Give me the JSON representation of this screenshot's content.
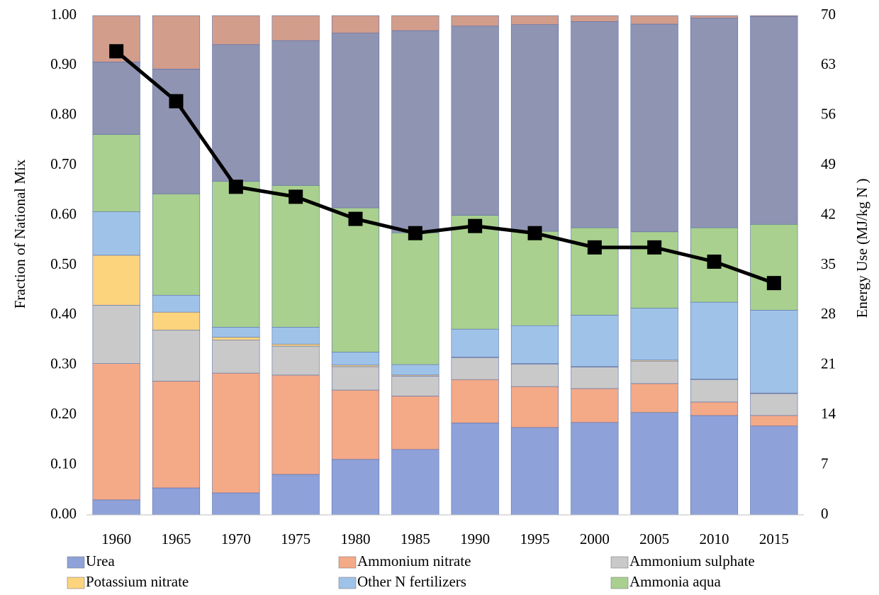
{
  "chart_data": {
    "type": "bar",
    "stacked": true,
    "ylabel": "Fraction of National Mix",
    "y2label": "Energy Use (MJ/kg N )",
    "categories": [
      "1960",
      "1965",
      "1970",
      "1975",
      "1980",
      "1985",
      "1990",
      "1995",
      "2000",
      "2005",
      "2010",
      "2015"
    ],
    "ylim": [
      0,
      1
    ],
    "yticks": [
      {
        "value": 0,
        "label": "0.00"
      },
      {
        "value": 0.1,
        "label": "0.10"
      },
      {
        "value": 0.2,
        "label": "0.20"
      },
      {
        "value": 0.3,
        "label": "0.30"
      },
      {
        "value": 0.4,
        "label": "0.40"
      },
      {
        "value": 0.5,
        "label": "0.50"
      },
      {
        "value": 0.6,
        "label": "0.60"
      },
      {
        "value": 0.7,
        "label": "0.70"
      },
      {
        "value": 0.8,
        "label": "0.80"
      },
      {
        "value": 0.9,
        "label": "0.90"
      },
      {
        "value": 1,
        "label": "1.00"
      }
    ],
    "y2lim": [
      0,
      70
    ],
    "y2ticks": [
      0,
      7,
      14,
      21,
      28,
      35,
      42,
      49,
      56,
      63,
      70
    ],
    "series": [
      {
        "name": "Urea",
        "color": "#8ea2d9",
        "values": [
          0.03,
          0.054,
          0.044,
          0.081,
          0.111,
          0.131,
          0.184,
          0.175,
          0.185,
          0.205,
          0.199,
          0.178
        ]
      },
      {
        "name": "Ammonium nitrate",
        "color": "#f4a987",
        "values": [
          0.273,
          0.214,
          0.24,
          0.199,
          0.139,
          0.107,
          0.087,
          0.082,
          0.068,
          0.058,
          0.027,
          0.021
        ]
      },
      {
        "name": "Ammonium sulphate",
        "color": "#c9c9c9",
        "values": [
          0.117,
          0.102,
          0.066,
          0.058,
          0.047,
          0.04,
          0.044,
          0.045,
          0.043,
          0.045,
          0.045,
          0.044
        ]
      },
      {
        "name": "Potassium nitrate",
        "color": "#fdd47e",
        "values": [
          0.1,
          0.036,
          0.006,
          0.004,
          0.003,
          0.002,
          0.001,
          0.001,
          0.001,
          0.002,
          0.001,
          0.001
        ]
      },
      {
        "name": "Other N fertilizers",
        "color": "#9fc3e8",
        "values": [
          0.087,
          0.034,
          0.02,
          0.034,
          0.026,
          0.021,
          0.056,
          0.076,
          0.103,
          0.104,
          0.154,
          0.166
        ]
      },
      {
        "name": "Ammonia aqua",
        "color": "#a9d08e",
        "values": [
          0.155,
          0.203,
          0.292,
          0.284,
          0.289,
          0.264,
          0.228,
          0.189,
          0.175,
          0.153,
          0.149,
          0.172
        ]
      },
      {
        "color": "#8f94b2",
        "values": [
          0.145,
          0.25,
          0.274,
          0.29,
          0.35,
          0.405,
          0.379,
          0.414,
          0.413,
          0.416,
          0.42,
          0.416
        ]
      },
      {
        "color": "#d39d8b",
        "values": [
          0.093,
          0.107,
          0.058,
          0.05,
          0.035,
          0.03,
          0.021,
          0.018,
          0.012,
          0.017,
          0.005,
          0.002
        ]
      },
      {
        "color": "#000000",
        "axis": "y2",
        "values": [
          65,
          58,
          46,
          44.6,
          41.5,
          39.5,
          40.5,
          39.5,
          37.5,
          37.5,
          35.5,
          32.5
        ]
      }
    ]
  }
}
